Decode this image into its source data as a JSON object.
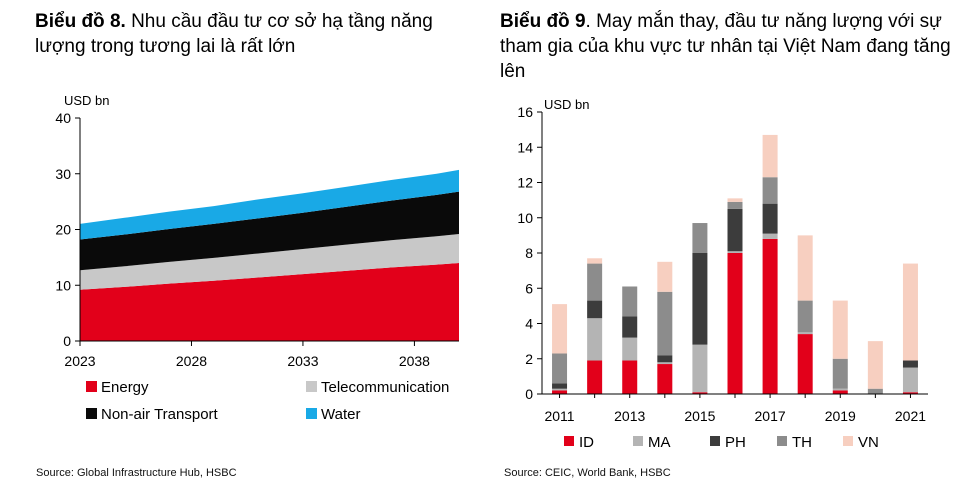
{
  "chart_data": [
    {
      "type": "area",
      "title_prefix": "Biểu đồ 8.",
      "title": " Nhu cầu đầu tư cơ sở hạ tầng năng lượng trong tương lai là rất lớn",
      "unit_label": "USD bn",
      "x_ticks": [
        "2023",
        "2028",
        "2033",
        "2038"
      ],
      "y_ticks": [
        "0",
        "10",
        "20",
        "30",
        "40"
      ],
      "ylim": [
        0,
        40
      ],
      "xlim": [
        2023,
        2040
      ],
      "grid": false,
      "legend_position": "bottom",
      "x": [
        2023,
        2025,
        2027,
        2029,
        2031,
        2033,
        2035,
        2037,
        2039,
        2040
      ],
      "series": [
        {
          "name": "Energy",
          "color": "#e2001a",
          "values": [
            9.2,
            9.7,
            10.3,
            10.8,
            11.4,
            12.0,
            12.6,
            13.2,
            13.7,
            14.0
          ]
        },
        {
          "name": "Telecommunication",
          "color": "#c8c8c8",
          "values": [
            3.5,
            3.7,
            3.9,
            4.1,
            4.3,
            4.5,
            4.7,
            4.9,
            5.1,
            5.2
          ]
        },
        {
          "name": "Non-air Transport",
          "color": "#0a0a0a",
          "values": [
            5.5,
            5.7,
            5.9,
            6.1,
            6.3,
            6.5,
            6.8,
            7.1,
            7.4,
            7.6
          ]
        },
        {
          "name": "Water",
          "color": "#19a9e6",
          "values": [
            2.8,
            3.0,
            3.1,
            3.2,
            3.4,
            3.5,
            3.6,
            3.7,
            3.8,
            3.9
          ]
        }
      ],
      "source": "Source: Global Infrastructure Hub, HSBC"
    },
    {
      "type": "bar",
      "stacked": true,
      "title_prefix": "Biểu đồ 9",
      "title": ". May mắn thay, đầu tư năng lượng với sự tham gia của khu vực tư nhân tại Việt Nam đang tăng lên",
      "unit_label": "USD bn",
      "categories": [
        "2011",
        "2012",
        "2013",
        "2014",
        "2015",
        "2016",
        "2017",
        "2018",
        "2019",
        "2020",
        "2021"
      ],
      "x_tick_labels": [
        "2011",
        "2013",
        "2015",
        "2017",
        "2019",
        "2021"
      ],
      "y_ticks": [
        "0",
        "2",
        "4",
        "6",
        "8",
        "10",
        "12",
        "14",
        "16"
      ],
      "ylim": [
        0,
        16
      ],
      "grid": false,
      "legend_position": "bottom",
      "series": [
        {
          "name": "ID",
          "color": "#e2001a",
          "values": [
            0.2,
            1.9,
            1.9,
            1.7,
            0.1,
            8.0,
            8.8,
            3.4,
            0.2,
            0.0,
            0.1
          ]
        },
        {
          "name": "MA",
          "color": "#b4b4b4",
          "values": [
            0.1,
            2.4,
            1.3,
            0.1,
            2.7,
            0.1,
            0.3,
            0.1,
            0.1,
            0.0,
            1.4
          ]
        },
        {
          "name": "PH",
          "color": "#3c3c3c",
          "values": [
            0.3,
            1.0,
            1.2,
            0.4,
            5.2,
            2.4,
            1.7,
            0.0,
            0.0,
            0.0,
            0.4
          ]
        },
        {
          "name": "TH",
          "color": "#8c8c8c",
          "values": [
            1.7,
            2.1,
            1.7,
            3.6,
            1.7,
            0.4,
            1.5,
            1.8,
            1.7,
            0.3,
            0.0
          ]
        },
        {
          "name": "VN",
          "color": "#f7cfc0",
          "values": [
            2.8,
            0.3,
            0.0,
            1.7,
            0.0,
            0.2,
            2.4,
            3.7,
            3.3,
            2.7,
            5.5
          ]
        }
      ],
      "source": "Source: CEIC, World Bank, HSBC"
    }
  ]
}
